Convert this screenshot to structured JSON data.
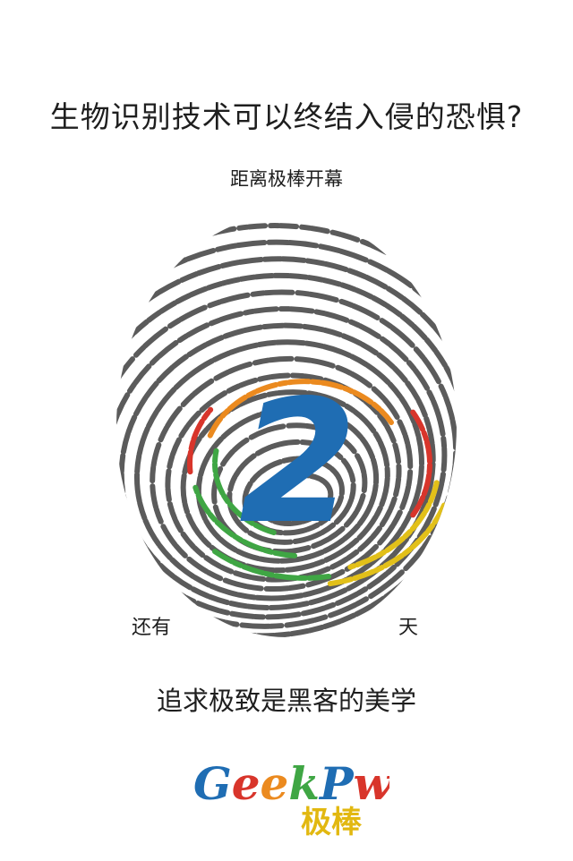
{
  "headline": "生物识别技术可以终结入侵的恐惧?",
  "subline": "距离极棒开幕",
  "countdown": {
    "prefix": "还有",
    "days": "2",
    "suffix": "天"
  },
  "slogan": "追求极致是黑客的美学",
  "logo": {
    "latin": "GeekPwn",
    "chinese": "极棒"
  },
  "colors": {
    "ridge_gray": "#5b5b5b",
    "number_blue": "#1f6db3",
    "accent_red": "#d8352b",
    "accent_orange": "#eb8a1f",
    "accent_yellow": "#e2c019",
    "accent_green": "#3fa644",
    "text": "#1e1e1e"
  },
  "icons": [
    "fingerprint-icon",
    "geekpwn-logo"
  ]
}
